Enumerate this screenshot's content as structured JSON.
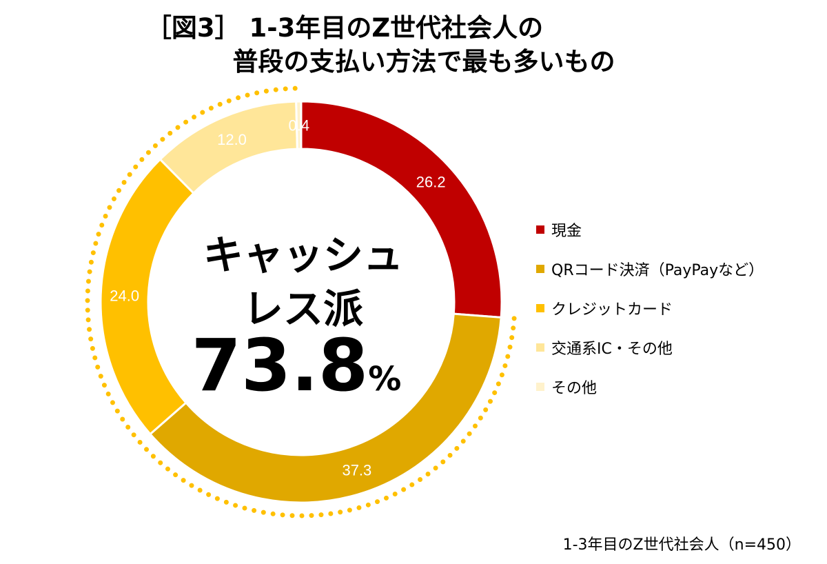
{
  "title": {
    "line1": "［図3］ 1-3年目のZ世代社会人の",
    "line2": "普段の支払い方法で最も多いもの"
  },
  "center": {
    "line1": "キャッシュ",
    "line2": "レス派",
    "value": "73.8",
    "unit": "%"
  },
  "note": "1-3年目のZ世代社会人（n=450）",
  "colors": {
    "cash": "#c00000",
    "qr": "#e0a800",
    "credit": "#ffc000",
    "transit": "#ffe699",
    "other": "#fff2cc",
    "dots": "#ffc000"
  },
  "chart_data": {
    "type": "pie",
    "variant": "donut",
    "categories": [
      "現金",
      "QRコード決済（PayPayなど）",
      "クレジットカード",
      "交通系IC・その他",
      "その他"
    ],
    "values": [
      26.2,
      37.3,
      24.0,
      12.0,
      0.4
    ],
    "value_labels": [
      "26.2",
      "37.3",
      "24.0",
      "12.0",
      "0.4"
    ],
    "legend_position": "right"
  }
}
